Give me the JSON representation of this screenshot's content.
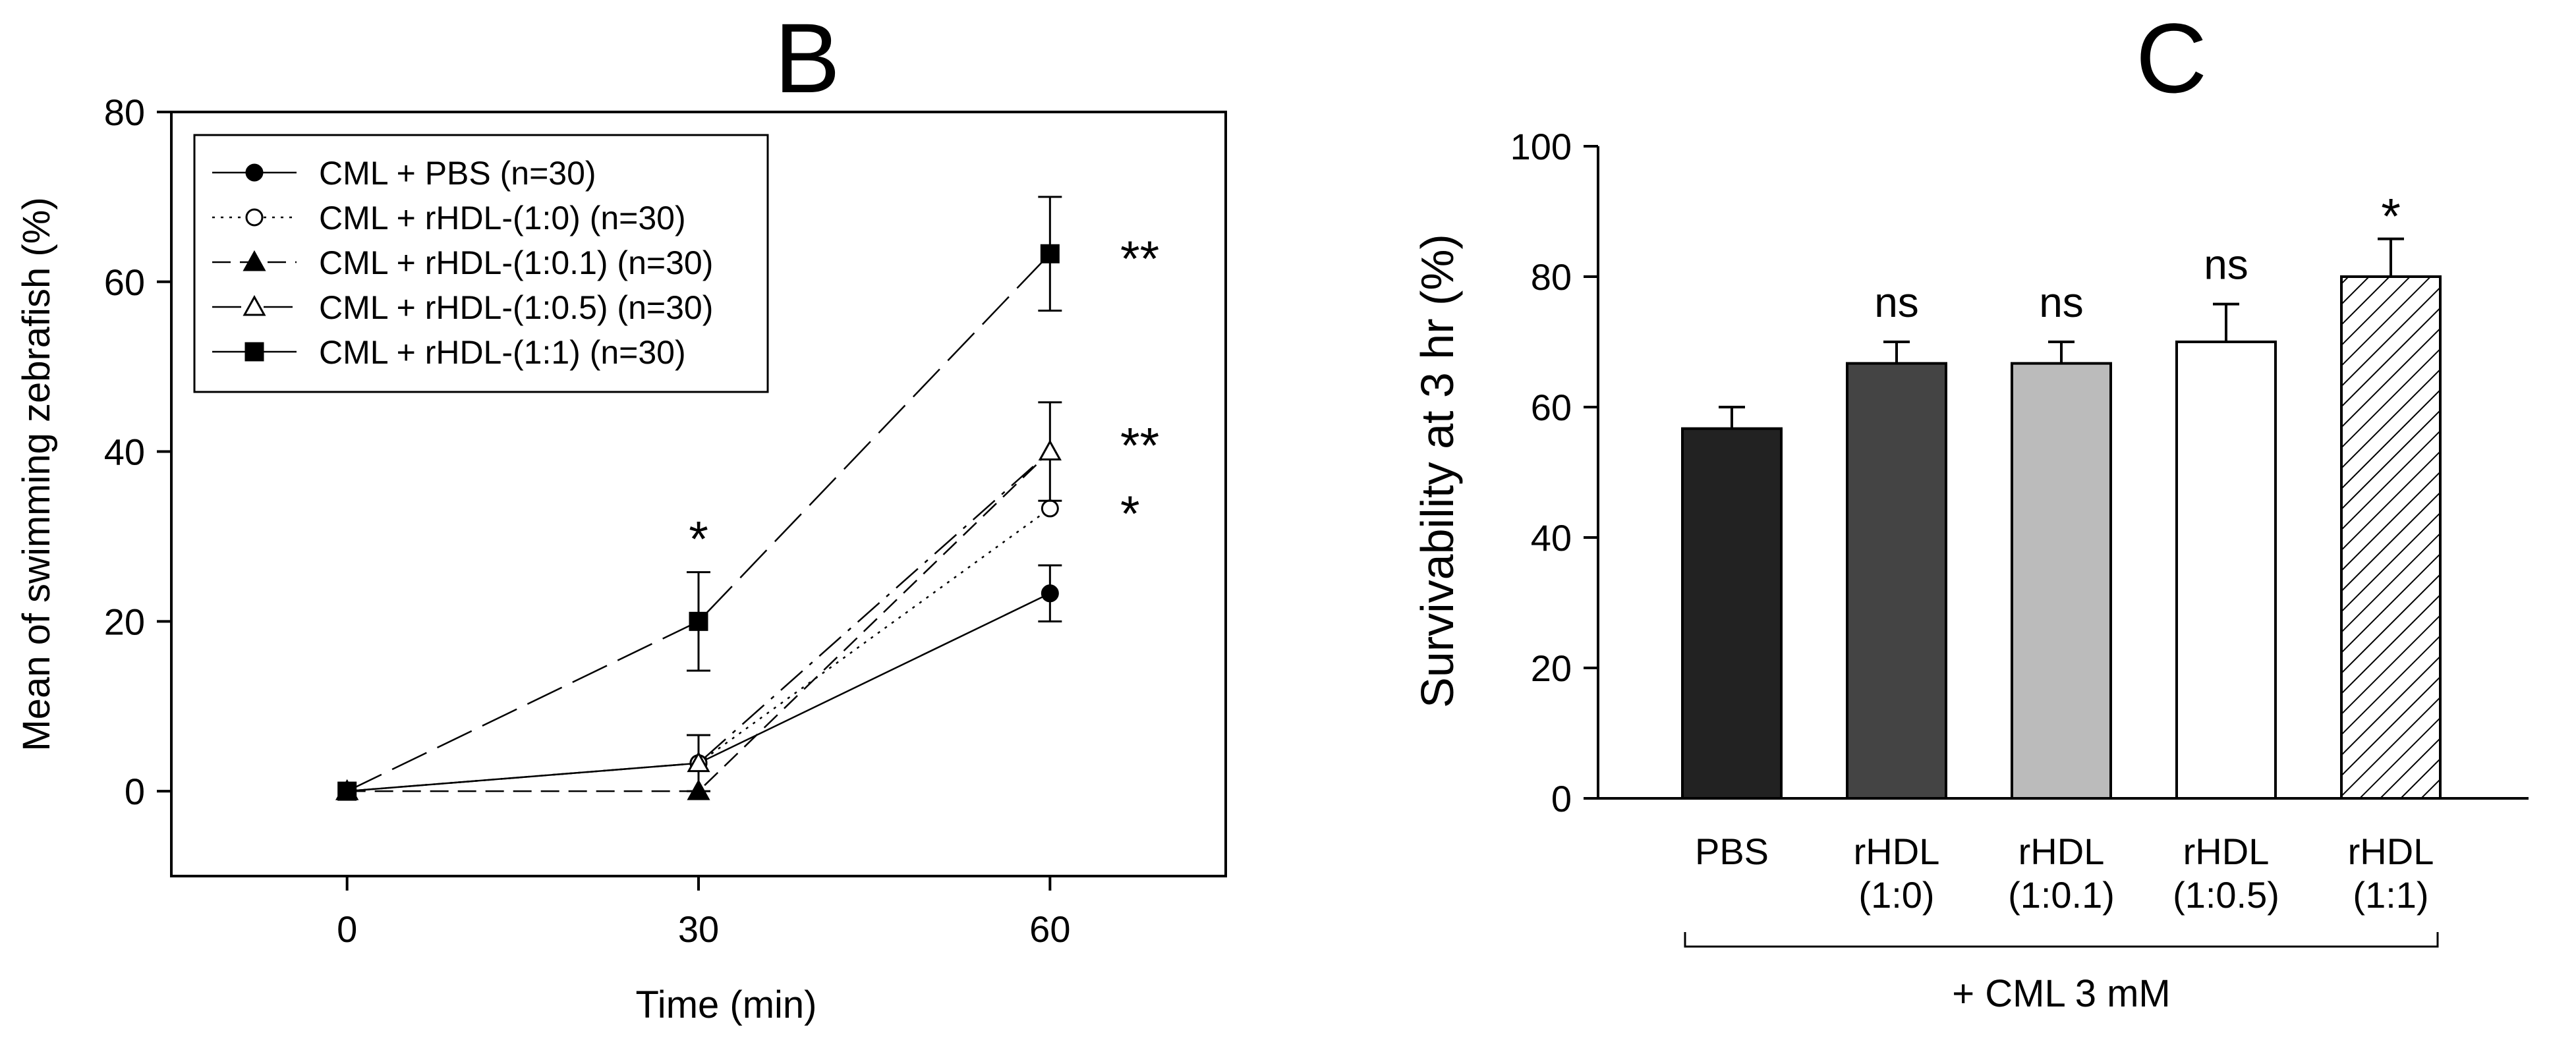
{
  "chart_data": [
    {
      "type": "line",
      "panel_label": "B",
      "title": "",
      "xlabel": "Time (min)",
      "ylabel": "Mean of swimming zebrafish (%)",
      "x": [
        0,
        30,
        60
      ],
      "xticks": [
        "0",
        "30",
        "60"
      ],
      "yticks": [
        "0",
        "20",
        "40",
        "60",
        "80"
      ],
      "xlim": [
        -15,
        75
      ],
      "ylim": [
        -10,
        80
      ],
      "legend_position": "top-left",
      "series": [
        {
          "name": "CML + PBS (n=30)",
          "marker": "filled-circle",
          "line": "solid",
          "values": [
            0,
            3.3,
            23.3
          ],
          "errors": [
            0,
            0,
            3.3
          ]
        },
        {
          "name": "CML + rHDL-(1:0) (n=30)",
          "marker": "open-circle",
          "line": "dotted",
          "values": [
            0,
            3.3,
            33.3
          ],
          "errors": [
            0,
            0,
            0
          ]
        },
        {
          "name": "CML + rHDL-(1:0.1) (n=30)",
          "marker": "filled-triangle",
          "line": "dashed",
          "values": [
            0,
            0,
            40
          ],
          "errors": [
            0,
            0,
            0
          ]
        },
        {
          "name": "CML + rHDL-(1:0.5) (n=30)",
          "marker": "open-triangle",
          "line": "dash-dot",
          "values": [
            0,
            3.3,
            40
          ],
          "errors": [
            0,
            3.3,
            5.8
          ]
        },
        {
          "name": "CML + rHDL-(1:1) (n=30)",
          "marker": "filled-square",
          "line": "long-dash",
          "values": [
            0,
            20,
            63.3
          ],
          "errors": [
            0,
            5.8,
            6.7
          ]
        }
      ],
      "annotations": [
        {
          "text": "*",
          "x": 30,
          "y": 30
        },
        {
          "text": "**",
          "x": 66,
          "y": 63
        },
        {
          "text": "**",
          "x": 66,
          "y": 41
        },
        {
          "text": "*",
          "x": 66,
          "y": 33
        }
      ]
    },
    {
      "type": "bar",
      "panel_label": "C",
      "title": "",
      "xlabel": "+ CML 3 mM",
      "ylabel": "Survivability at 3 hr (%)",
      "categories": [
        [
          "PBS"
        ],
        [
          "rHDL",
          "(1:0)"
        ],
        [
          "rHDL",
          "(1:0.1)"
        ],
        [
          "rHDL",
          "(1:0.5)"
        ],
        [
          "rHDL",
          "(1:1)"
        ]
      ],
      "values": [
        56.7,
        66.7,
        66.7,
        70,
        80
      ],
      "errors": [
        3.3,
        3.3,
        3.3,
        5.8,
        5.8
      ],
      "significance": [
        "",
        "ns",
        "ns",
        "ns",
        "*"
      ],
      "colors": [
        "#222222",
        "#444444",
        "#bbbbbb",
        "#ffffff",
        "hatched"
      ],
      "yticks": [
        "0",
        "20",
        "40",
        "60",
        "80",
        "100"
      ],
      "ylim": [
        0,
        100
      ]
    }
  ]
}
